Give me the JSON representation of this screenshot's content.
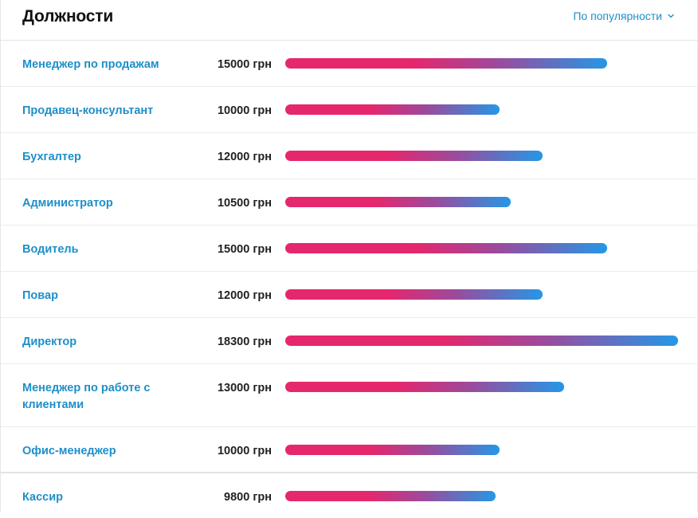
{
  "header": {
    "title": "Должности",
    "sort_label": "По популярности",
    "sort_icon": "chevron-down-icon"
  },
  "colors": {
    "link": "#1e8fc9",
    "bar_start": "#e5276d",
    "bar_end": "#2597e6"
  },
  "max_salary": 18300,
  "positions": [
    {
      "name": "Менеджер по продажам",
      "salary": "15000 грн",
      "value": 15000
    },
    {
      "name": "Продавец-консультант",
      "salary": "10000 грн",
      "value": 10000
    },
    {
      "name": "Бухгалтер",
      "salary": "12000 грн",
      "value": 12000
    },
    {
      "name": "Администратор",
      "salary": "10500 грн",
      "value": 10500
    },
    {
      "name": "Водитель",
      "salary": "15000 грн",
      "value": 15000
    },
    {
      "name": "Повар",
      "salary": "12000 грн",
      "value": 12000
    },
    {
      "name": "Директор",
      "salary": "18300 грн",
      "value": 18300
    },
    {
      "name": "Менеджер по работе с клиентами",
      "salary": "13000 грн",
      "value": 13000
    },
    {
      "name": "Офис-менеджер",
      "salary": "10000 грн",
      "value": 10000
    },
    {
      "name": "Кассир",
      "salary": "9800 грн",
      "value": 9800
    }
  ]
}
